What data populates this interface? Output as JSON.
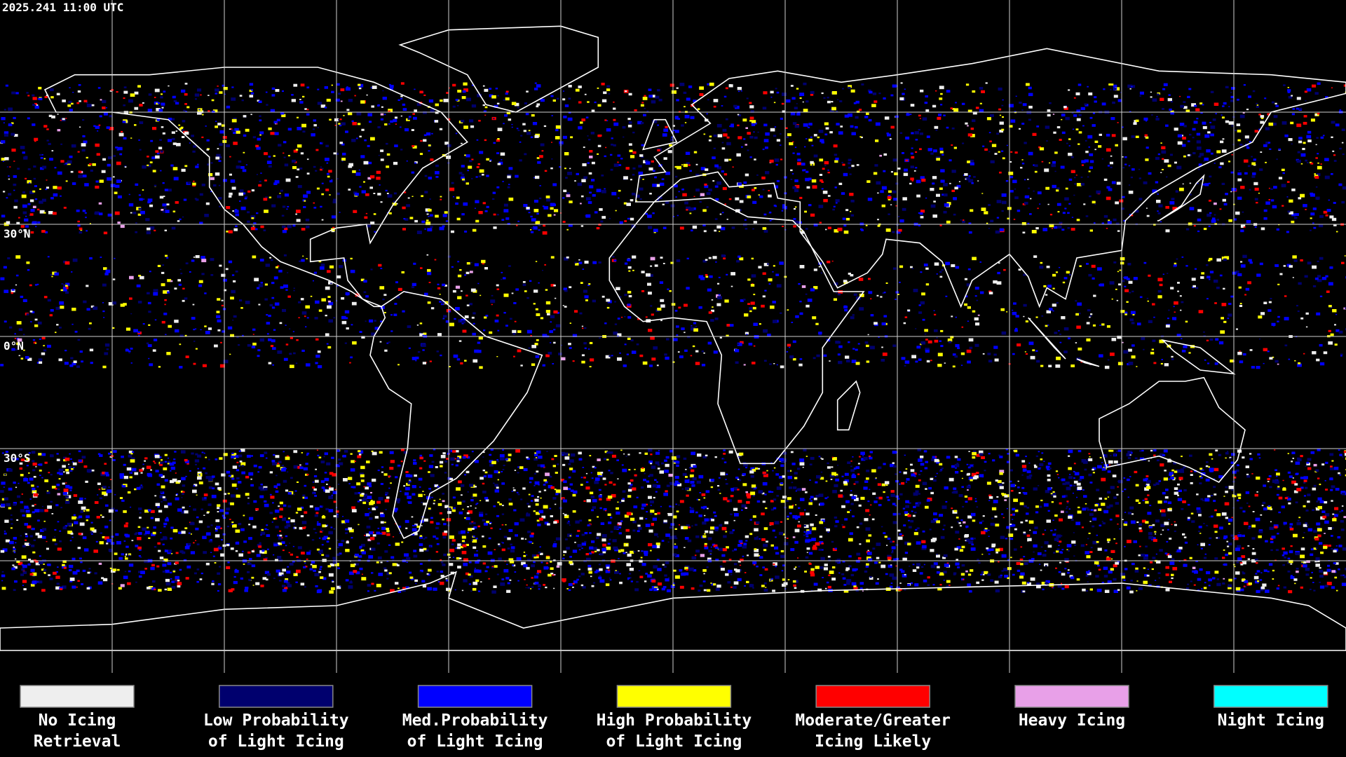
{
  "timestamp": "2025.241 11:00 UTC",
  "latitude_labels": [
    "30°N",
    "0°N",
    "30°S"
  ],
  "legend": [
    {
      "label": [
        "No Icing",
        "Retrieval"
      ],
      "color": "#eeeeee"
    },
    {
      "label": [
        "Low Probability",
        "of Light Icing"
      ],
      "color": "#00006e"
    },
    {
      "label": [
        "Med.Probability",
        "of Light Icing"
      ],
      "color": "#0000ff"
    },
    {
      "label": [
        "High Probability",
        "of Light Icing"
      ],
      "color": "#ffff00"
    },
    {
      "label": [
        "Moderate/Greater",
        "Icing Likely"
      ],
      "color": "#ff0000"
    },
    {
      "label": [
        "Heavy Icing"
      ],
      "color": "#e8a0e8"
    },
    {
      "label": [
        "Night Icing"
      ],
      "color": "#00ffff"
    }
  ]
}
